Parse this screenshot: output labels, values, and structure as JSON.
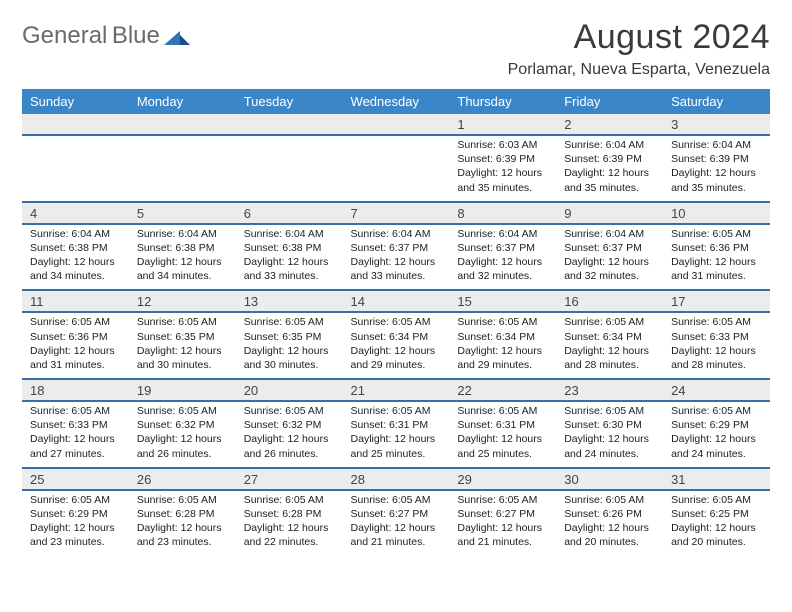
{
  "brand": {
    "name_gray": "General",
    "name_blue": "Blue"
  },
  "title": "August 2024",
  "subtitle": "Porlamar, Nueva Esparta, Venezuela",
  "colors": {
    "header_bg": "#3a86c8",
    "header_text": "#ffffff",
    "daynum_bg": "#ececec",
    "row_divider": "#3a6ea5",
    "text": "#222222",
    "title_color": "#3a3a3a",
    "logo_gray": "#6a6a6a",
    "logo_blue": "#2f74b5"
  },
  "fonts": {
    "title_size_pt": 26,
    "subtitle_size_pt": 12,
    "header_size_pt": 10,
    "daynum_size_pt": 10,
    "info_size_pt": 8
  },
  "weekdays": [
    "Sunday",
    "Monday",
    "Tuesday",
    "Wednesday",
    "Thursday",
    "Friday",
    "Saturday"
  ],
  "weeks": [
    {
      "days": [
        {
          "num": "",
          "sunrise": "",
          "sunset": "",
          "daylight": ""
        },
        {
          "num": "",
          "sunrise": "",
          "sunset": "",
          "daylight": ""
        },
        {
          "num": "",
          "sunrise": "",
          "sunset": "",
          "daylight": ""
        },
        {
          "num": "",
          "sunrise": "",
          "sunset": "",
          "daylight": ""
        },
        {
          "num": "1",
          "sunrise": "Sunrise: 6:03 AM",
          "sunset": "Sunset: 6:39 PM",
          "daylight": "Daylight: 12 hours and 35 minutes."
        },
        {
          "num": "2",
          "sunrise": "Sunrise: 6:04 AM",
          "sunset": "Sunset: 6:39 PM",
          "daylight": "Daylight: 12 hours and 35 minutes."
        },
        {
          "num": "3",
          "sunrise": "Sunrise: 6:04 AM",
          "sunset": "Sunset: 6:39 PM",
          "daylight": "Daylight: 12 hours and 35 minutes."
        }
      ]
    },
    {
      "days": [
        {
          "num": "4",
          "sunrise": "Sunrise: 6:04 AM",
          "sunset": "Sunset: 6:38 PM",
          "daylight": "Daylight: 12 hours and 34 minutes."
        },
        {
          "num": "5",
          "sunrise": "Sunrise: 6:04 AM",
          "sunset": "Sunset: 6:38 PM",
          "daylight": "Daylight: 12 hours and 34 minutes."
        },
        {
          "num": "6",
          "sunrise": "Sunrise: 6:04 AM",
          "sunset": "Sunset: 6:38 PM",
          "daylight": "Daylight: 12 hours and 33 minutes."
        },
        {
          "num": "7",
          "sunrise": "Sunrise: 6:04 AM",
          "sunset": "Sunset: 6:37 PM",
          "daylight": "Daylight: 12 hours and 33 minutes."
        },
        {
          "num": "8",
          "sunrise": "Sunrise: 6:04 AM",
          "sunset": "Sunset: 6:37 PM",
          "daylight": "Daylight: 12 hours and 32 minutes."
        },
        {
          "num": "9",
          "sunrise": "Sunrise: 6:04 AM",
          "sunset": "Sunset: 6:37 PM",
          "daylight": "Daylight: 12 hours and 32 minutes."
        },
        {
          "num": "10",
          "sunrise": "Sunrise: 6:05 AM",
          "sunset": "Sunset: 6:36 PM",
          "daylight": "Daylight: 12 hours and 31 minutes."
        }
      ]
    },
    {
      "days": [
        {
          "num": "11",
          "sunrise": "Sunrise: 6:05 AM",
          "sunset": "Sunset: 6:36 PM",
          "daylight": "Daylight: 12 hours and 31 minutes."
        },
        {
          "num": "12",
          "sunrise": "Sunrise: 6:05 AM",
          "sunset": "Sunset: 6:35 PM",
          "daylight": "Daylight: 12 hours and 30 minutes."
        },
        {
          "num": "13",
          "sunrise": "Sunrise: 6:05 AM",
          "sunset": "Sunset: 6:35 PM",
          "daylight": "Daylight: 12 hours and 30 minutes."
        },
        {
          "num": "14",
          "sunrise": "Sunrise: 6:05 AM",
          "sunset": "Sunset: 6:34 PM",
          "daylight": "Daylight: 12 hours and 29 minutes."
        },
        {
          "num": "15",
          "sunrise": "Sunrise: 6:05 AM",
          "sunset": "Sunset: 6:34 PM",
          "daylight": "Daylight: 12 hours and 29 minutes."
        },
        {
          "num": "16",
          "sunrise": "Sunrise: 6:05 AM",
          "sunset": "Sunset: 6:34 PM",
          "daylight": "Daylight: 12 hours and 28 minutes."
        },
        {
          "num": "17",
          "sunrise": "Sunrise: 6:05 AM",
          "sunset": "Sunset: 6:33 PM",
          "daylight": "Daylight: 12 hours and 28 minutes."
        }
      ]
    },
    {
      "days": [
        {
          "num": "18",
          "sunrise": "Sunrise: 6:05 AM",
          "sunset": "Sunset: 6:33 PM",
          "daylight": "Daylight: 12 hours and 27 minutes."
        },
        {
          "num": "19",
          "sunrise": "Sunrise: 6:05 AM",
          "sunset": "Sunset: 6:32 PM",
          "daylight": "Daylight: 12 hours and 26 minutes."
        },
        {
          "num": "20",
          "sunrise": "Sunrise: 6:05 AM",
          "sunset": "Sunset: 6:32 PM",
          "daylight": "Daylight: 12 hours and 26 minutes."
        },
        {
          "num": "21",
          "sunrise": "Sunrise: 6:05 AM",
          "sunset": "Sunset: 6:31 PM",
          "daylight": "Daylight: 12 hours and 25 minutes."
        },
        {
          "num": "22",
          "sunrise": "Sunrise: 6:05 AM",
          "sunset": "Sunset: 6:31 PM",
          "daylight": "Daylight: 12 hours and 25 minutes."
        },
        {
          "num": "23",
          "sunrise": "Sunrise: 6:05 AM",
          "sunset": "Sunset: 6:30 PM",
          "daylight": "Daylight: 12 hours and 24 minutes."
        },
        {
          "num": "24",
          "sunrise": "Sunrise: 6:05 AM",
          "sunset": "Sunset: 6:29 PM",
          "daylight": "Daylight: 12 hours and 24 minutes."
        }
      ]
    },
    {
      "days": [
        {
          "num": "25",
          "sunrise": "Sunrise: 6:05 AM",
          "sunset": "Sunset: 6:29 PM",
          "daylight": "Daylight: 12 hours and 23 minutes."
        },
        {
          "num": "26",
          "sunrise": "Sunrise: 6:05 AM",
          "sunset": "Sunset: 6:28 PM",
          "daylight": "Daylight: 12 hours and 23 minutes."
        },
        {
          "num": "27",
          "sunrise": "Sunrise: 6:05 AM",
          "sunset": "Sunset: 6:28 PM",
          "daylight": "Daylight: 12 hours and 22 minutes."
        },
        {
          "num": "28",
          "sunrise": "Sunrise: 6:05 AM",
          "sunset": "Sunset: 6:27 PM",
          "daylight": "Daylight: 12 hours and 21 minutes."
        },
        {
          "num": "29",
          "sunrise": "Sunrise: 6:05 AM",
          "sunset": "Sunset: 6:27 PM",
          "daylight": "Daylight: 12 hours and 21 minutes."
        },
        {
          "num": "30",
          "sunrise": "Sunrise: 6:05 AM",
          "sunset": "Sunset: 6:26 PM",
          "daylight": "Daylight: 12 hours and 20 minutes."
        },
        {
          "num": "31",
          "sunrise": "Sunrise: 6:05 AM",
          "sunset": "Sunset: 6:25 PM",
          "daylight": "Daylight: 12 hours and 20 minutes."
        }
      ]
    }
  ]
}
